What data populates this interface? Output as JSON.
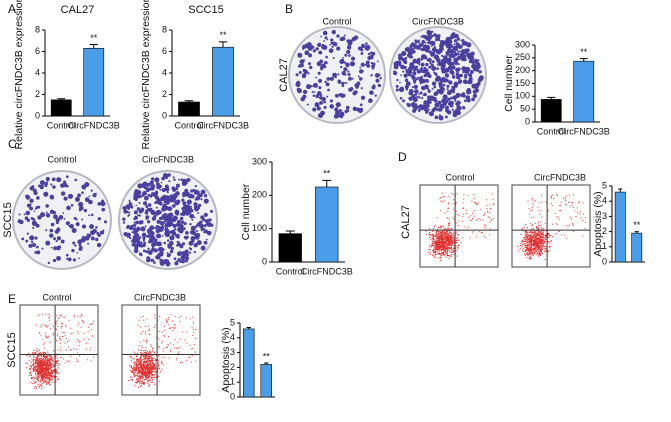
{
  "panels": {
    "letters": [
      "A",
      "B",
      "C",
      "D",
      "E"
    ],
    "B": {
      "row_label": "CAL27",
      "image_labels": [
        "Control",
        "CircFNDC3B"
      ]
    },
    "C": {
      "row_label": "SCC15",
      "image_labels": [
        "Control",
        "CircFNDC3B"
      ]
    },
    "D": {
      "row_label": "CAL27",
      "image_labels": [
        "Control",
        "CircFNDC3B"
      ]
    },
    "E": {
      "row_label": "SCC15",
      "image_labels": [
        "Control",
        "CircFNDC3B"
      ]
    }
  },
  "chart_data": [
    {
      "type": "bar",
      "title": "CAL27",
      "y_label": "Relative circFNDC3B expression",
      "categories": [
        "Control",
        "CircFNDC3B"
      ],
      "values": [
        1.5,
        6.3
      ],
      "errors": [
        0.1,
        0.35
      ],
      "colors": [
        "#000000",
        "#4a9de8"
      ],
      "ylim": [
        0,
        8
      ],
      "yticks": [
        0,
        2,
        4,
        6,
        8
      ],
      "annotation": "**"
    },
    {
      "type": "bar",
      "title": "SCC15",
      "y_label": "Relative circFNDC3B expression",
      "categories": [
        "Control",
        "CircFNDC3B"
      ],
      "values": [
        1.3,
        6.4
      ],
      "errors": [
        0.12,
        0.5
      ],
      "colors": [
        "#000000",
        "#4a9de8"
      ],
      "ylim": [
        0,
        8
      ],
      "yticks": [
        0,
        2,
        4,
        6,
        8
      ],
      "annotation": "**"
    },
    {
      "type": "bar",
      "y_label": "Cell number",
      "categories": [
        "Control",
        "CircFNDC3B"
      ],
      "values": [
        88,
        237
      ],
      "errors": [
        8,
        10
      ],
      "colors": [
        "#000000",
        "#4a9de8"
      ],
      "ylim": [
        0,
        300
      ],
      "yticks": [
        0,
        50,
        100,
        150,
        200,
        250,
        300
      ],
      "annotation": "**"
    },
    {
      "type": "bar",
      "y_label": "Cell number",
      "categories": [
        "Control",
        "CircFNDC3B"
      ],
      "values": [
        85,
        225
      ],
      "errors": [
        8,
        20
      ],
      "colors": [
        "#000000",
        "#4a9de8"
      ],
      "ylim": [
        0,
        300
      ],
      "yticks": [
        0,
        100,
        200,
        300
      ],
      "annotation": "**"
    },
    {
      "type": "bar",
      "y_label": "Apoptosis (%)",
      "values": [
        4.6,
        1.9
      ],
      "errors": [
        0.2,
        0.1
      ],
      "colors": [
        "#4a9de8",
        "#4a9de8"
      ],
      "ylim": [
        0,
        5
      ],
      "yticks": [
        0,
        1,
        2,
        3,
        4,
        5
      ],
      "annotation": "**"
    },
    {
      "type": "bar",
      "y_label": "Apoptosis (%)",
      "values": [
        4.6,
        2.2
      ],
      "errors": [
        0.1,
        0.1
      ],
      "colors": [
        "#4a9de8",
        "#4a9de8"
      ],
      "ylim": [
        0,
        5
      ],
      "yticks": [
        0,
        1,
        2,
        3,
        4,
        5
      ],
      "annotation": "**"
    }
  ]
}
